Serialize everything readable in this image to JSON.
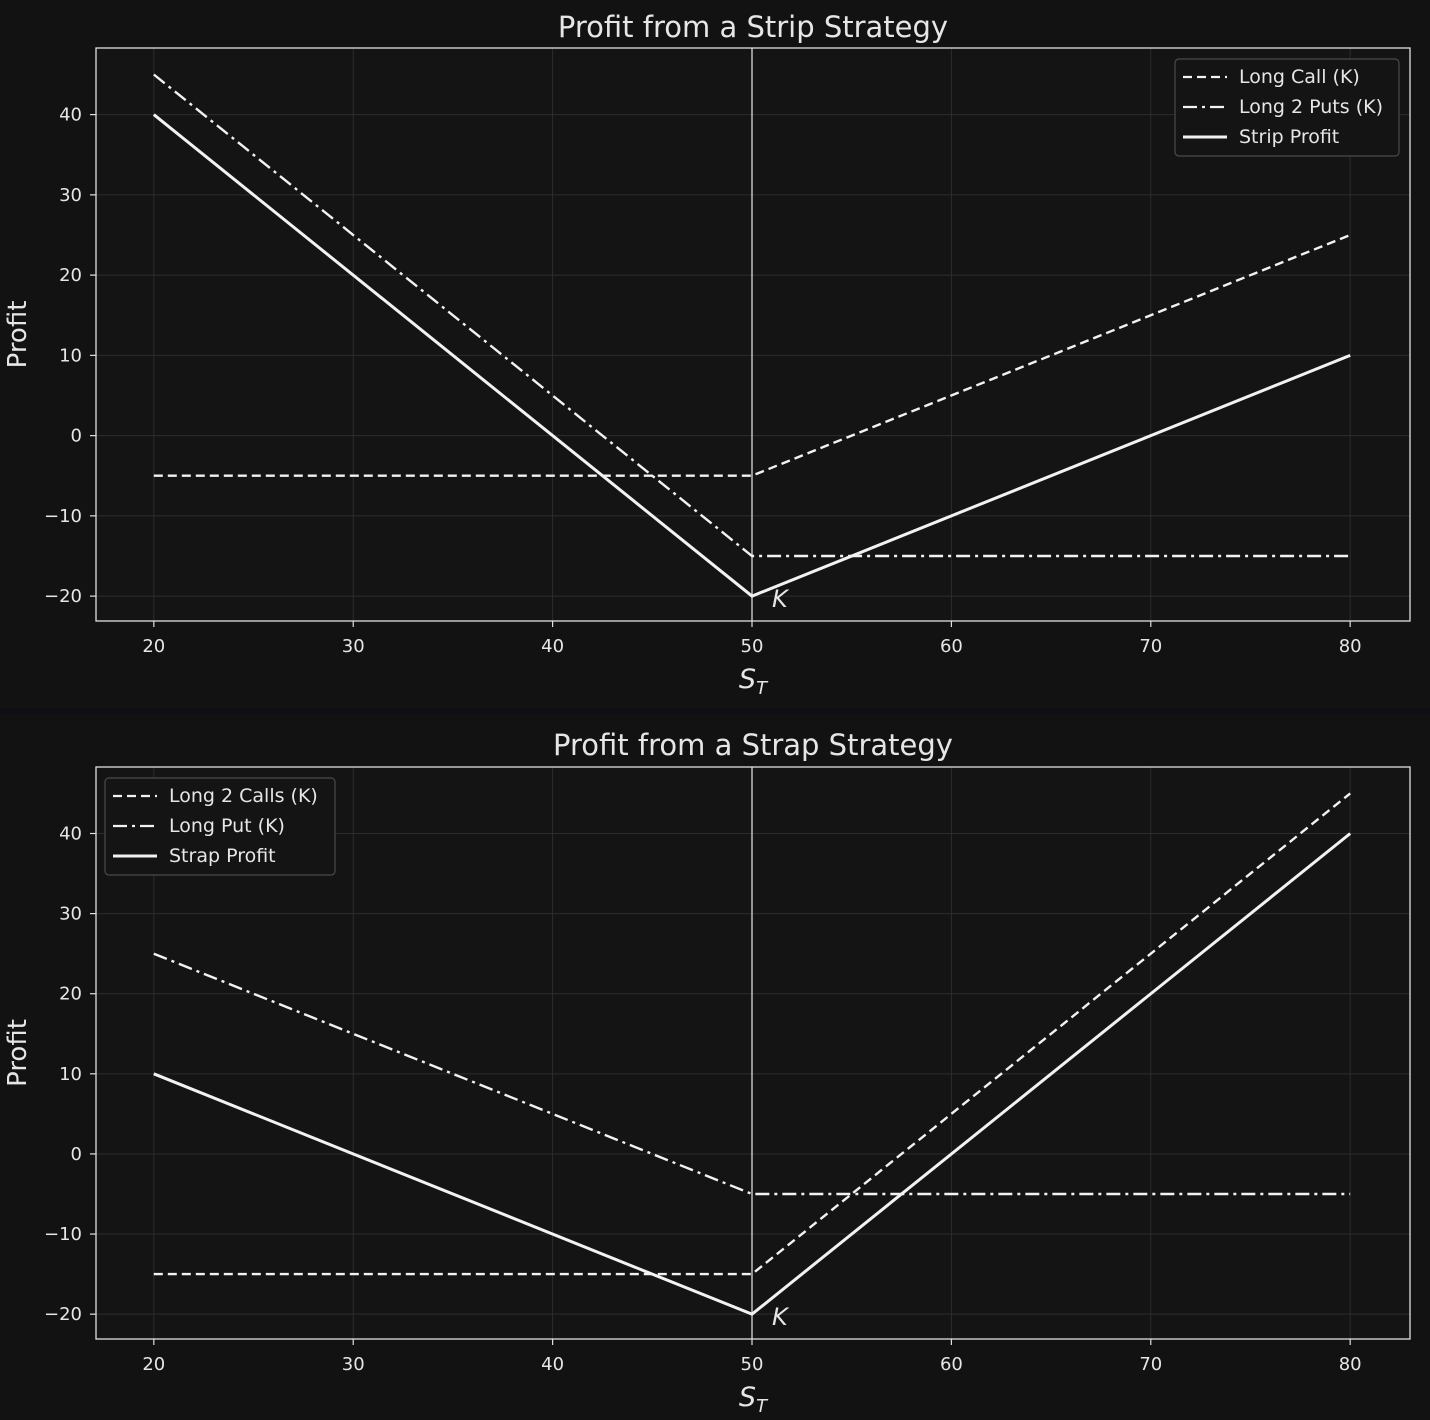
{
  "chart_data": [
    {
      "type": "line",
      "title": "Profit from a Strip Strategy",
      "xlabel": "S_T",
      "xlabel_main": "S",
      "xlabel_sub": "T",
      "ylabel": "Profit",
      "xlim": [
        17.1,
        83.0
      ],
      "ylim": [
        -23.1,
        48.3
      ],
      "xticks": [
        20,
        30,
        40,
        50,
        60,
        70,
        80
      ],
      "yticks": [
        -20,
        -10,
        0,
        10,
        20,
        30,
        40
      ],
      "strike": 50,
      "strike_label": "K",
      "grid": true,
      "legend_position": "top-right",
      "x": [
        20,
        50,
        80
      ],
      "series": [
        {
          "name": "Long Call (K)",
          "style": "dashed",
          "values": [
            -5,
            -5,
            25
          ]
        },
        {
          "name": "Long 2 Puts (K)",
          "style": "dashdot",
          "values": [
            45,
            -15,
            -15
          ]
        },
        {
          "name": "Strip Profit",
          "style": "solid",
          "values": [
            40,
            -20,
            10
          ]
        }
      ]
    },
    {
      "type": "line",
      "title": "Profit from a Strap Strategy",
      "xlabel": "S_T",
      "xlabel_main": "S",
      "xlabel_sub": "T",
      "ylabel": "Profit",
      "xlim": [
        17.1,
        83.0
      ],
      "ylim": [
        -23.1,
        48.3
      ],
      "xticks": [
        20,
        30,
        40,
        50,
        60,
        70,
        80
      ],
      "yticks": [
        -20,
        -10,
        0,
        10,
        20,
        30,
        40
      ],
      "strike": 50,
      "strike_label": "K",
      "grid": true,
      "legend_position": "top-left",
      "x": [
        20,
        50,
        80
      ],
      "series": [
        {
          "name": "Long 2 Calls (K)",
          "style": "dashed",
          "values": [
            -15,
            -15,
            45
          ]
        },
        {
          "name": "Long Put (K)",
          "style": "dashdot",
          "values": [
            25,
            -5,
            -5
          ]
        },
        {
          "name": "Strap Profit",
          "style": "solid",
          "values": [
            10,
            -20,
            40
          ]
        }
      ]
    }
  ],
  "colors": {
    "figure_background": "#121212",
    "axes_background": "#141414",
    "line": "#f2f2f2",
    "grid": "#2c2c2c",
    "text": "#e6e6e6"
  }
}
